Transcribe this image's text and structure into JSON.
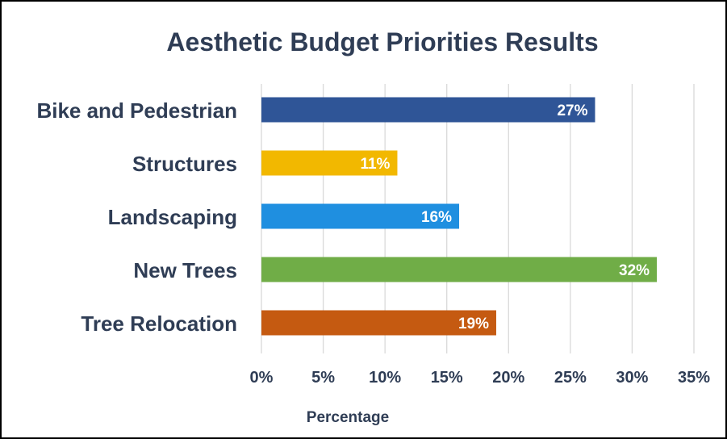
{
  "chart_data": {
    "type": "bar",
    "orientation": "horizontal",
    "title": "Aesthetic Budget Priorities Results",
    "xlabel": "Percentage",
    "ylabel": "",
    "categories": [
      "Bike and Pedestrian",
      "Structures",
      "Landscaping",
      "New Trees",
      "Tree Relocation"
    ],
    "values": [
      27,
      11,
      16,
      32,
      19
    ],
    "data_labels": [
      "27%",
      "11%",
      "16%",
      "32%",
      "19%"
    ],
    "bar_colors": [
      "#2f5597",
      "#f2b800",
      "#1f8fe0",
      "#70ad47",
      "#c55a11"
    ],
    "xlim": [
      0,
      35
    ],
    "x_ticks": [
      0,
      5,
      10,
      15,
      20,
      25,
      30,
      35
    ],
    "x_tick_labels": [
      "0%",
      "5%",
      "10%",
      "15%",
      "20%",
      "25%",
      "30%",
      "35%"
    ],
    "grid": true,
    "legend": "none"
  },
  "colors": {
    "text": "#2f3d55",
    "gridline": "#d9d9d9",
    "data_label": "#ffffff",
    "background": "#ffffff"
  }
}
